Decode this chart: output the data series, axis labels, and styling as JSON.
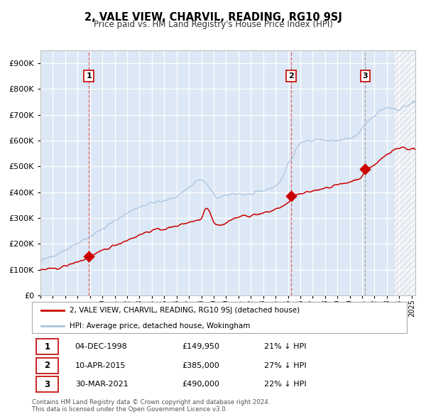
{
  "title": "2, VALE VIEW, CHARVIL, READING, RG10 9SJ",
  "subtitle": "Price paid vs. HM Land Registry's House Price Index (HPI)",
  "legend_line1": "2, VALE VIEW, CHARVIL, READING, RG10 9SJ (detached house)",
  "legend_line2": "HPI: Average price, detached house, Wokingham",
  "footer1": "Contains HM Land Registry data © Crown copyright and database right 2024.",
  "footer2": "This data is licensed under the Open Government Licence v3.0.",
  "transactions": [
    {
      "num": 1,
      "date": "04-DEC-1998",
      "price": "£149,950",
      "pct": "21% ↓ HPI"
    },
    {
      "num": 2,
      "date": "10-APR-2015",
      "price": "£385,000",
      "pct": "27% ↓ HPI"
    },
    {
      "num": 3,
      "date": "30-MAR-2021",
      "price": "£490,000",
      "pct": "22% ↓ HPI"
    }
  ],
  "sale_dates_num": [
    1998.92,
    2015.27,
    2021.25
  ],
  "sale_prices": [
    149950,
    385000,
    490000
  ],
  "hpi_color": "#a8c4e0",
  "price_color": "#cc0000",
  "bg_color": "#dce8f5",
  "grid_color": "#ffffff",
  "vline_red_color": "#e05050",
  "vline_grey_color": "#999999",
  "ylim_max": 950000,
  "xlim_start": 1995.0,
  "xlim_end": 2025.3,
  "hatch_start": 2023.5,
  "yticks": [
    0,
    100000,
    200000,
    300000,
    400000,
    500000,
    600000,
    700000,
    800000,
    900000
  ]
}
